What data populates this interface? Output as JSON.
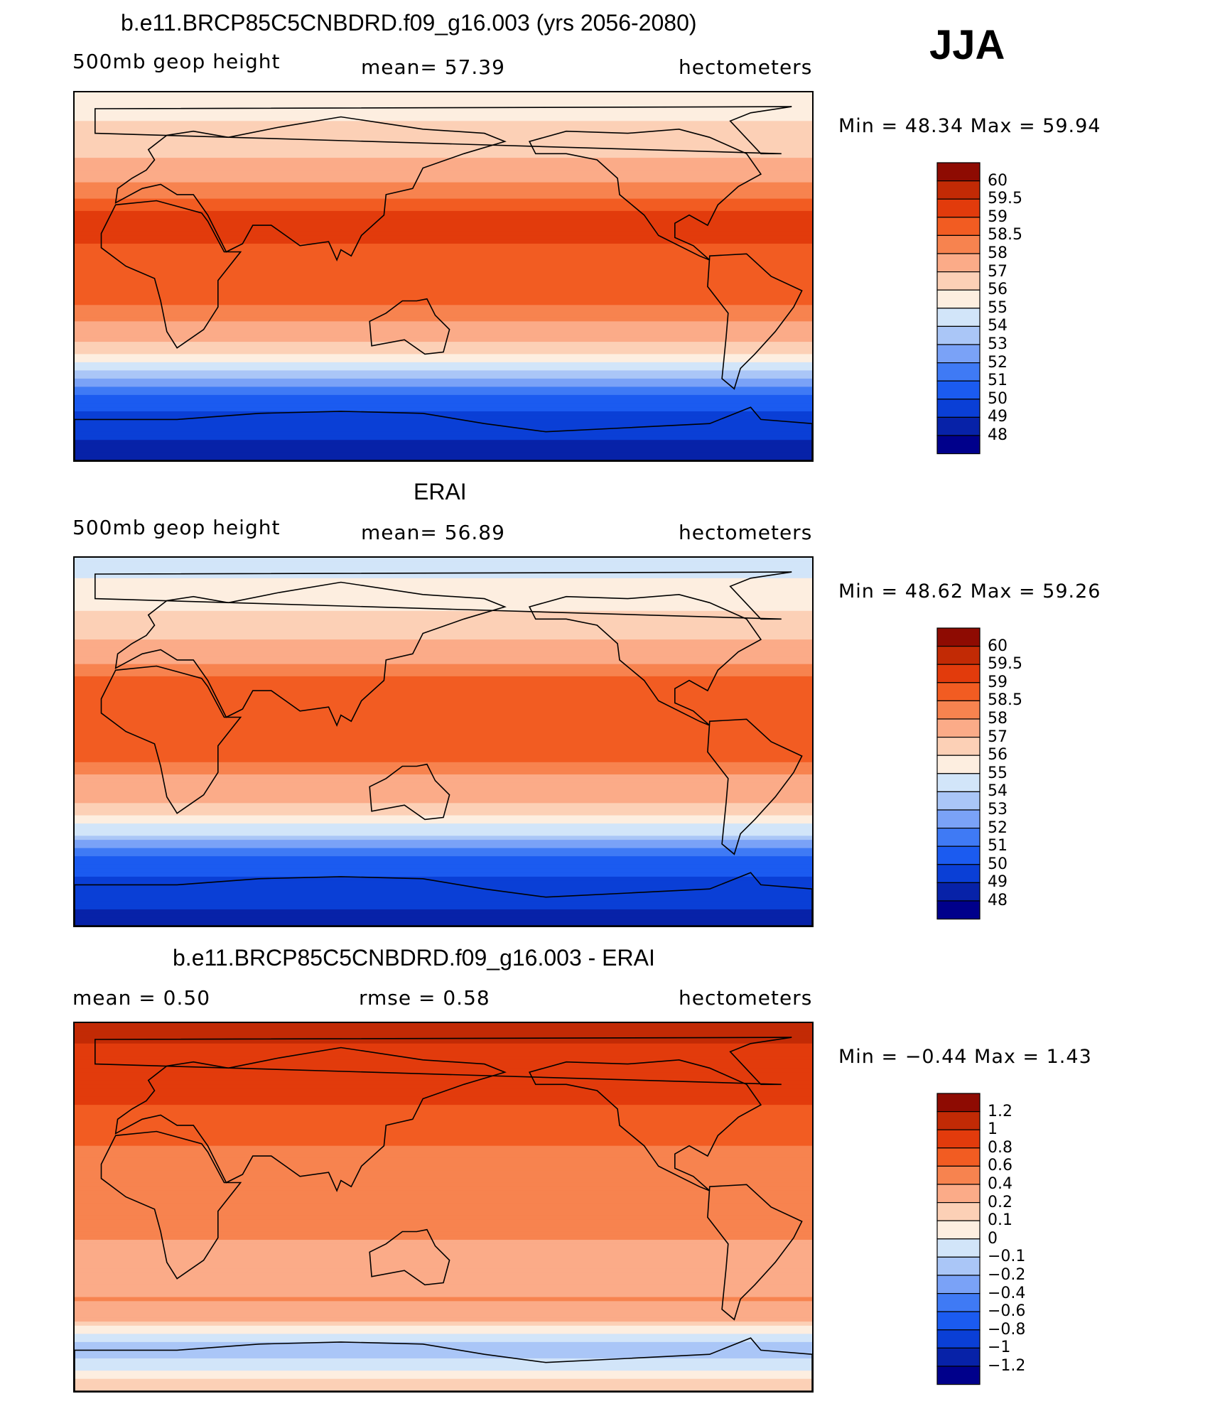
{
  "season": "JJA",
  "colors": {
    "abs_scale": [
      "#00008b",
      "#0722a8",
      "#0a3fd6",
      "#1b5bf0",
      "#3f7af5",
      "#7aa2f7",
      "#aac6f7",
      "#d2e5f9",
      "#fdeee0",
      "#fcd0b6",
      "#fbab88",
      "#f7834f",
      "#f25c22",
      "#e23b0c",
      "#c22a05",
      "#8e0b02"
    ],
    "diff_scale": [
      "#00008b",
      "#0722a8",
      "#0a3fd6",
      "#1b5bf0",
      "#3f7af5",
      "#7aa2f7",
      "#aac6f7",
      "#d2e5f9",
      "#fdeee0",
      "#fcd0b6",
      "#fbab88",
      "#f7834f",
      "#f25c22",
      "#e23b0c",
      "#c22a05",
      "#8e0b02"
    ]
  },
  "panels": [
    {
      "title": "b.e11.BRCP85C5CNBDRD.f09_g16.003 (yrs 2056-2080)",
      "left_label": "500mb geop height",
      "center_label": "mean=   57.39",
      "right_label": "hectometers",
      "minmax": "Min =   48.34  Max =   59.94",
      "colorbar_labels": [
        "60",
        "59.5",
        "59",
        "58.5",
        "58",
        "57",
        "56",
        "55",
        "54",
        "53",
        "52",
        "51",
        "50",
        "49",
        "48"
      ]
    },
    {
      "title": "ERAI",
      "left_label": "500mb geop height",
      "center_label": "mean=   56.89",
      "right_label": "hectometers",
      "minmax": "Min =   48.62  Max =   59.26",
      "colorbar_labels": [
        "60",
        "59.5",
        "59",
        "58.5",
        "58",
        "57",
        "56",
        "55",
        "54",
        "53",
        "52",
        "51",
        "50",
        "49",
        "48"
      ]
    },
    {
      "title": "b.e11.BRCP85C5CNBDRD.f09_g16.003 - ERAI",
      "left_label": "mean =     0.50",
      "center_label": "rmse =     0.58",
      "right_label": "hectometers",
      "minmax": "Min =   −0.44  Max =     1.43",
      "colorbar_labels": [
        "1.2",
        "1",
        "0.8",
        "0.6",
        "0.4",
        "0.2",
        "0.1",
        "0",
        "−0.1",
        "−0.2",
        "−0.4",
        "−0.6",
        "−0.8",
        "−1",
        "−1.2"
      ]
    }
  ],
  "chart_data": [
    {
      "type": "heatmap",
      "title": "b.e11.BRCP85C5CNBDRD.f09_g16.003 (yrs 2056-2080)",
      "variable": "500mb geop height",
      "units": "hectometers",
      "mean": 57.39,
      "min": 48.34,
      "max": 59.94,
      "levels": [
        48,
        49,
        50,
        51,
        52,
        53,
        54,
        55,
        56,
        57,
        58,
        58.5,
        59,
        59.5,
        60
      ],
      "zonal_profile": [
        {
          "lat": 90,
          "value": 55.6
        },
        {
          "lat": 70,
          "value": 56.2
        },
        {
          "lat": 50,
          "value": 57.6
        },
        {
          "lat": 30,
          "value": 59.2
        },
        {
          "lat": 10,
          "value": 58.9
        },
        {
          "lat": -10,
          "value": 58.8
        },
        {
          "lat": -30,
          "value": 57.5
        },
        {
          "lat": -45,
          "value": 54.5
        },
        {
          "lat": -55,
          "value": 51.5
        },
        {
          "lat": -70,
          "value": 49.5
        },
        {
          "lat": -90,
          "value": 48.5
        }
      ]
    },
    {
      "type": "heatmap",
      "title": "ERAI",
      "variable": "500mb geop height",
      "units": "hectometers",
      "mean": 56.89,
      "min": 48.62,
      "max": 59.26,
      "levels": [
        48,
        49,
        50,
        51,
        52,
        53,
        54,
        55,
        56,
        57,
        58,
        58.5,
        59,
        59.5,
        60
      ],
      "zonal_profile": [
        {
          "lat": 90,
          "value": 54.5
        },
        {
          "lat": 70,
          "value": 55.5
        },
        {
          "lat": 50,
          "value": 57.0
        },
        {
          "lat": 30,
          "value": 58.6
        },
        {
          "lat": 10,
          "value": 58.6
        },
        {
          "lat": -10,
          "value": 58.5
        },
        {
          "lat": -30,
          "value": 57.0
        },
        {
          "lat": -45,
          "value": 54.0
        },
        {
          "lat": -55,
          "value": 51.0
        },
        {
          "lat": -70,
          "value": 49.5
        },
        {
          "lat": -90,
          "value": 48.7
        }
      ]
    },
    {
      "type": "heatmap",
      "title": "b.e11.BRCP85C5CNBDRD.f09_g16.003 - ERAI",
      "units": "hectometers",
      "mean": 0.5,
      "rmse": 0.58,
      "min": -0.44,
      "max": 1.43,
      "levels": [
        -1.2,
        -1,
        -0.8,
        -0.6,
        -0.4,
        -0.2,
        -0.1,
        0,
        0.1,
        0.2,
        0.4,
        0.6,
        0.8,
        1,
        1.2
      ],
      "zonal_profile": [
        {
          "lat": 90,
          "value": 1.1
        },
        {
          "lat": 70,
          "value": 0.9
        },
        {
          "lat": 50,
          "value": 0.8
        },
        {
          "lat": 30,
          "value": 0.6
        },
        {
          "lat": 10,
          "value": 0.5
        },
        {
          "lat": -10,
          "value": 0.45
        },
        {
          "lat": -30,
          "value": 0.3
        },
        {
          "lat": -45,
          "value": 0.4
        },
        {
          "lat": -55,
          "value": 0.2
        },
        {
          "lat": -70,
          "value": -0.2
        },
        {
          "lat": -90,
          "value": 0.2
        }
      ]
    }
  ]
}
